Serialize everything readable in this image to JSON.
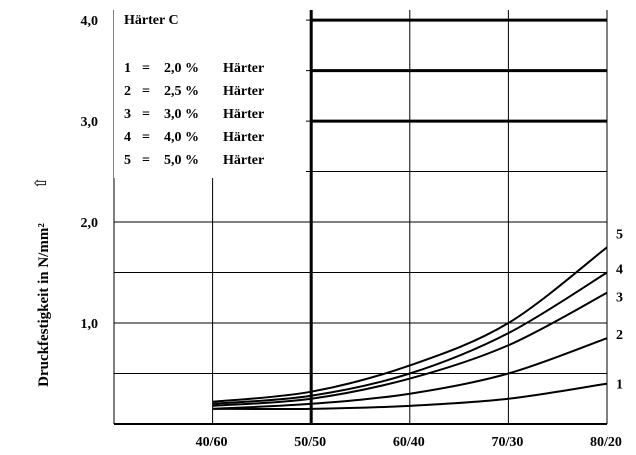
{
  "chart_data": {
    "type": "line",
    "title": "",
    "ylabel": "Druckfestigkeit in N/mm²",
    "ylabel_arrow": "⇧",
    "xlabel": "",
    "x_categories": [
      "40/60",
      "50/50",
      "60/40",
      "70/30",
      "80/20"
    ],
    "x_positions": [
      40,
      50,
      60,
      70,
      80
    ],
    "xlim": [
      30,
      80
    ],
    "ylim": [
      0,
      4.1
    ],
    "y_ticks": [
      1.0,
      2.0,
      3.0,
      4.0
    ],
    "y_tick_labels": [
      "1,0",
      "2,0",
      "3,0",
      "4,0"
    ],
    "grid": true,
    "legend": {
      "title": "Härter C",
      "placement": "top-left",
      "entries": [
        {
          "number": "1",
          "eq": "=",
          "value": "2,0 %",
          "label": "Härter"
        },
        {
          "number": "2",
          "eq": "=",
          "value": "2,5 %",
          "label": "Härter"
        },
        {
          "number": "3",
          "eq": "=",
          "value": "3,0 %",
          "label": "Härter"
        },
        {
          "number": "4",
          "eq": "=",
          "value": "4,0 %",
          "label": "Härter"
        },
        {
          "number": "5",
          "eq": "=",
          "value": "5,0 %",
          "label": "Härter"
        }
      ]
    },
    "series": [
      {
        "name": "1",
        "x": [
          40,
          50,
          60,
          70,
          80
        ],
        "y": [
          0.15,
          0.15,
          0.18,
          0.25,
          0.4
        ]
      },
      {
        "name": "2",
        "x": [
          40,
          50,
          60,
          70,
          80
        ],
        "y": [
          0.15,
          0.2,
          0.3,
          0.5,
          0.85
        ]
      },
      {
        "name": "3",
        "x": [
          40,
          50,
          60,
          70,
          80
        ],
        "y": [
          0.18,
          0.25,
          0.45,
          0.78,
          1.3
        ]
      },
      {
        "name": "4",
        "x": [
          40,
          50,
          60,
          70,
          80
        ],
        "y": [
          0.2,
          0.28,
          0.5,
          0.9,
          1.5
        ]
      },
      {
        "name": "5",
        "x": [
          40,
          50,
          60,
          70,
          80
        ],
        "y": [
          0.22,
          0.32,
          0.58,
          1.0,
          1.75
        ]
      }
    ],
    "horizontal_reference_lines": [
      {
        "x_from": 50,
        "x_to": 80,
        "y": 4.0
      },
      {
        "x_from": 50,
        "x_to": 80,
        "y": 3.5
      },
      {
        "x_from": 50,
        "x_to": 80,
        "y": 3.0
      }
    ],
    "vertical_reference_line": {
      "x": 50,
      "y_from": 0,
      "y_to": 4.1
    }
  }
}
